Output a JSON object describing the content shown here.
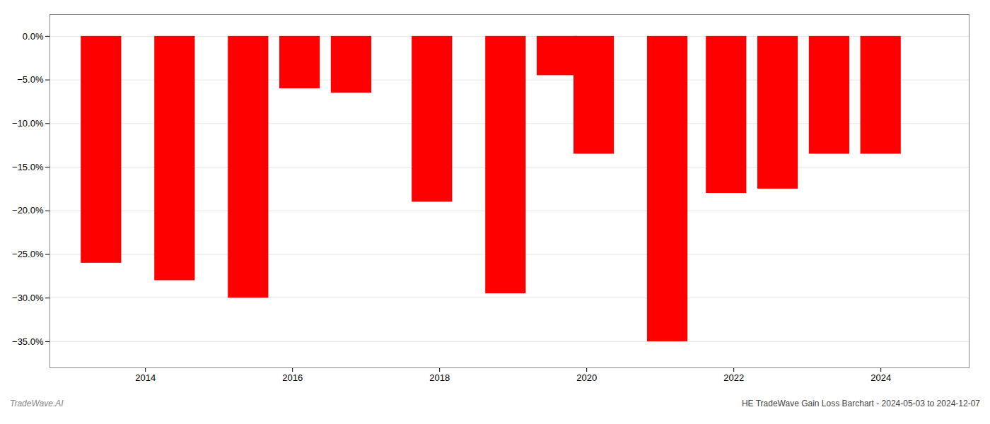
{
  "chart_data": {
    "type": "bar",
    "title": "HE TradeWave Gain Loss Barchart - 2024-05-03 to 2024-12-07",
    "annotations": [
      "TradeWave.AI"
    ],
    "x": [
      2013.4,
      2014.4,
      2015.4,
      2016.1,
      2016.8,
      2017.9,
      2018.9,
      2019.6,
      2020.1,
      2021.1,
      2021.9,
      2022.6,
      2023.3,
      2024.0
    ],
    "values": [
      -0.26,
      -0.28,
      -0.3,
      -0.06,
      -0.065,
      -0.19,
      -0.295,
      -0.045,
      -0.135,
      -0.35,
      -0.18,
      -0.175,
      -0.135,
      -0.135
    ],
    "color": "#ff0000",
    "xlim": [
      2012.7,
      2025.2
    ],
    "xticks": [
      2014,
      2016,
      2018,
      2020,
      2022,
      2024
    ],
    "ylim": [
      -0.38,
      0.025
    ],
    "yticks": [
      {
        "value": 0.0,
        "label": "0.0%"
      },
      {
        "value": -0.05,
        "label": "−5.0%"
      },
      {
        "value": -0.1,
        "label": "−10.0%"
      },
      {
        "value": -0.15,
        "label": "−15.0%"
      },
      {
        "value": -0.2,
        "label": "−20.0%"
      },
      {
        "value": -0.25,
        "label": "−25.0%"
      },
      {
        "value": -0.3,
        "label": "−30.0%"
      },
      {
        "value": -0.35,
        "label": "−35.0%"
      }
    ],
    "grid": true
  }
}
